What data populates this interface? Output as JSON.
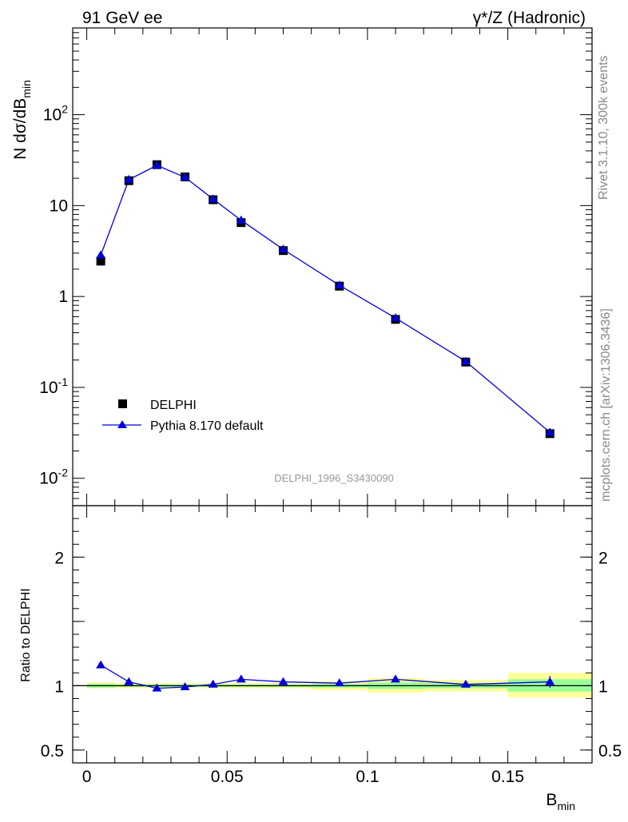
{
  "header": {
    "left": "91 GeV ee",
    "right": "γ*/Z (Hadronic)"
  },
  "side": {
    "rivet": "Rivet 3.1.10,  300k events",
    "mcplots": "mcplots.cern.ch [arXiv:1306.3436]"
  },
  "watermark": "DELPHI_1996_S3430090",
  "colors": {
    "data": "#000000",
    "mc": "#0000dd",
    "band_inner": "#99ff99",
    "band_outer": "#ffff99"
  },
  "chart_data": [
    {
      "type": "line",
      "panel": "main",
      "yscale": "log",
      "ylabel": "N dσ/dB",
      "ylabel_sub": "min",
      "xlim": [
        -0.005,
        0.18
      ],
      "ylim": [
        0.005,
        900
      ],
      "y_ticks": [
        "10^-2",
        "10^-1",
        "1",
        "10",
        "10^2"
      ],
      "legend_position": "center-left",
      "series": [
        {
          "name": "DELPHI",
          "marker": "square",
          "x": [
            0.005,
            0.015,
            0.025,
            0.035,
            0.045,
            0.055,
            0.07,
            0.09,
            0.11,
            0.135,
            0.165
          ],
          "y": [
            2.45,
            18.8,
            28.2,
            20.7,
            11.6,
            6.5,
            3.2,
            1.3,
            0.56,
            0.19,
            0.031
          ]
        },
        {
          "name": "Pythia 8.170 default",
          "marker": "triangle",
          "x": [
            0.005,
            0.015,
            0.025,
            0.035,
            0.045,
            0.055,
            0.07,
            0.09,
            0.11,
            0.135,
            0.165
          ],
          "y": [
            2.85,
            19.3,
            27.7,
            20.5,
            11.8,
            6.9,
            3.3,
            1.33,
            0.58,
            0.193,
            0.032
          ]
        }
      ]
    },
    {
      "type": "line",
      "panel": "ratio",
      "ylabel": "Ratio to DELPHI",
      "xlabel": "B",
      "xlabel_sub": "min",
      "xlim": [
        -0.005,
        0.18
      ],
      "ylim": [
        0.4,
        2.4
      ],
      "x_ticks": [
        "0",
        "0.05",
        "0.1",
        "0.15"
      ],
      "y_ticks": [
        "0.5",
        "1",
        "2"
      ],
      "series": [
        {
          "name": "Pythia 8.170 default",
          "x": [
            0.005,
            0.015,
            0.025,
            0.035,
            0.045,
            0.055,
            0.07,
            0.09,
            0.11,
            0.135,
            0.165
          ],
          "y": [
            1.16,
            1.03,
            0.98,
            0.99,
            1.01,
            1.05,
            1.03,
            1.02,
            1.05,
            1.01,
            1.03
          ]
        }
      ],
      "bands": [
        {
          "x0": 0.0,
          "x1": 0.01,
          "inner": [
            0.985,
            1.015
          ],
          "outer": [
            0.98,
            1.025
          ]
        },
        {
          "x0": 0.01,
          "x1": 0.02,
          "inner": [
            0.99,
            1.01
          ],
          "outer": [
            0.98,
            1.02
          ]
        },
        {
          "x0": 0.02,
          "x1": 0.03,
          "inner": [
            0.99,
            1.01
          ],
          "outer": [
            0.98,
            1.02
          ]
        },
        {
          "x0": 0.03,
          "x1": 0.04,
          "inner": [
            0.99,
            1.01
          ],
          "outer": [
            0.98,
            1.02
          ]
        },
        {
          "x0": 0.04,
          "x1": 0.05,
          "inner": [
            0.99,
            1.01
          ],
          "outer": [
            0.98,
            1.02
          ]
        },
        {
          "x0": 0.05,
          "x1": 0.06,
          "inner": [
            0.99,
            1.01
          ],
          "outer": [
            0.98,
            1.02
          ]
        },
        {
          "x0": 0.06,
          "x1": 0.08,
          "inner": [
            0.99,
            1.01
          ],
          "outer": [
            0.98,
            1.02
          ]
        },
        {
          "x0": 0.08,
          "x1": 0.1,
          "inner": [
            0.985,
            1.015
          ],
          "outer": [
            0.965,
            1.035
          ]
        },
        {
          "x0": 0.1,
          "x1": 0.12,
          "inner": [
            0.975,
            1.025
          ],
          "outer": [
            0.945,
            1.06
          ]
        },
        {
          "x0": 0.12,
          "x1": 0.15,
          "inner": [
            0.98,
            1.02
          ],
          "outer": [
            0.955,
            1.045
          ]
        },
        {
          "x0": 0.15,
          "x1": 0.18,
          "inner": [
            0.955,
            1.05
          ],
          "outer": [
            0.91,
            1.1
          ]
        }
      ]
    }
  ]
}
